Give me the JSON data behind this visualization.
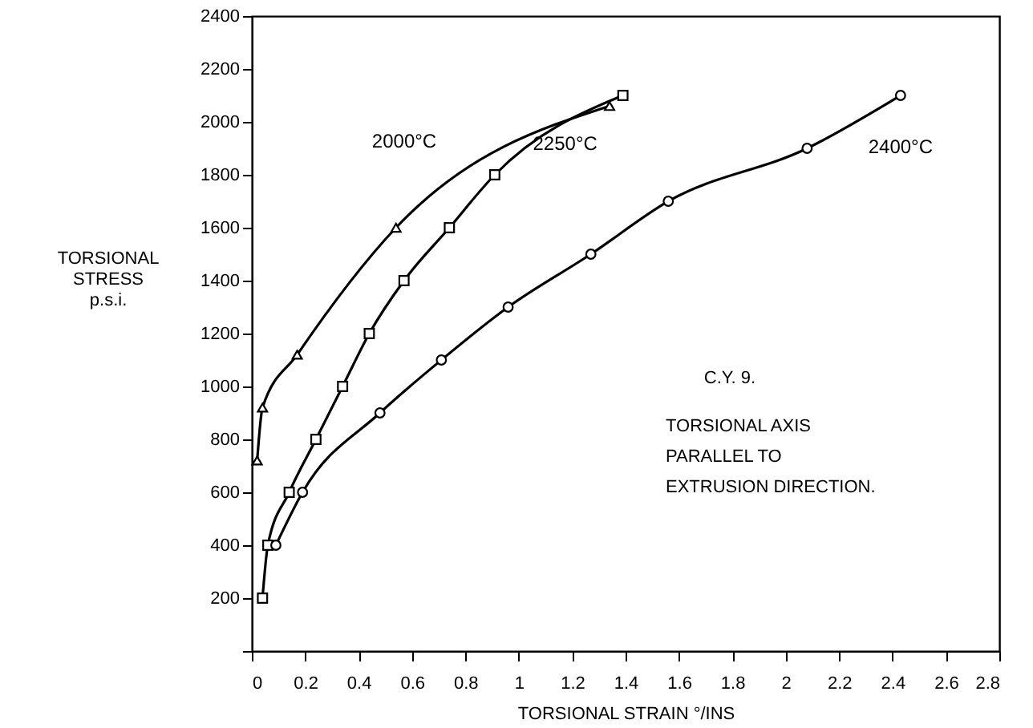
{
  "chart_data": {
    "type": "line",
    "xlabel": "TORSIONAL STRAIN °/INS",
    "ylabel": "TORSIONAL\nSTRESS\np.s.i.",
    "xlim": [
      0,
      2.8
    ],
    "xticks": [
      0,
      0.2,
      0.4,
      0.6,
      0.8,
      1.0,
      1.2,
      1.4,
      1.6,
      1.8,
      2.0,
      2.2,
      2.4,
      2.6,
      2.8
    ],
    "ylim": [
      0,
      2400
    ],
    "yticks": [
      {
        "value": 0,
        "label": null
      },
      200,
      400,
      600,
      800,
      1000,
      1200,
      1400,
      1600,
      1800,
      2000,
      2200,
      2400
    ],
    "grid": false,
    "series": [
      {
        "name": "2000°C",
        "color": "#000000",
        "marker": "triangle",
        "x": [
          0.02,
          0.04,
          0.17,
          0.54,
          1.34
        ],
        "values": [
          720,
          920,
          1120,
          1600,
          2060
        ]
      },
      {
        "name": "2250°C",
        "color": "#000000",
        "marker": "square",
        "x": [
          0.04,
          0.06,
          0.14,
          0.24,
          0.34,
          0.44,
          0.57,
          0.74,
          0.91,
          1.39
        ],
        "values": [
          200,
          400,
          600,
          800,
          1000,
          1200,
          1400,
          1600,
          1800,
          2100
        ]
      },
      {
        "name": "2400°C",
        "color": "#000000",
        "marker": "circle",
        "x": [
          0.09,
          0.19,
          0.48,
          0.71,
          0.96,
          1.27,
          1.56,
          2.08,
          2.43
        ],
        "values": [
          400,
          600,
          900,
          1100,
          1300,
          1500,
          1700,
          1900,
          2100
        ]
      }
    ],
    "annotations": [
      "C.Y. 9.",
      "TORSIONAL AXIS\nPARALLEL    TO\nEXTRUSION DIRECTION."
    ]
  }
}
